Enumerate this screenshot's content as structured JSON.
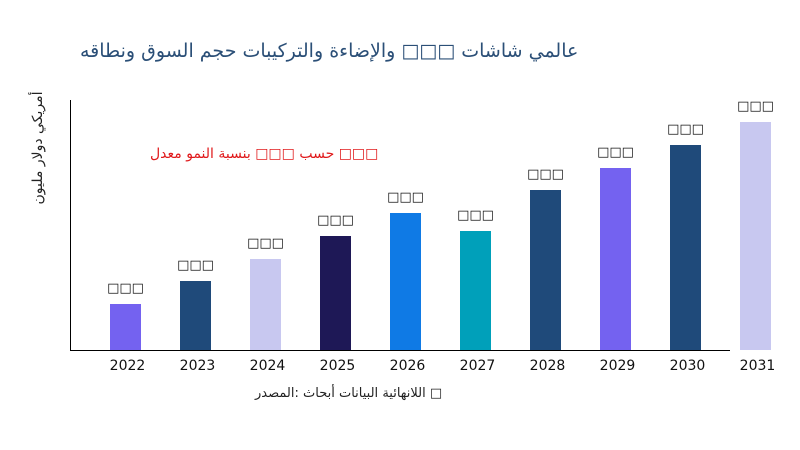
{
  "chart_data": {
    "type": "bar",
    "title": "ونطاقه السوق حجم والتركيبات والإضاءة □□□ شاشات عالمي",
    "ylabel": "مليون دولار أمريكي",
    "xlabel": "",
    "annotation": "معدل النمو بنسبة □□□ حسب □□□",
    "source": "المصدر: أبحاث البيانات اللانهائية □",
    "categories": [
      "2022",
      "2023",
      "2024",
      "2025",
      "2026",
      "2027",
      "2028",
      "2029",
      "2030",
      "2031"
    ],
    "values": [
      46,
      69,
      91,
      114,
      137,
      119,
      160,
      182,
      205,
      228
    ],
    "data_labels": [
      "□□□",
      "□□□",
      "□□□",
      "□□□",
      "□□□",
      "□□□",
      "□□□",
      "□□□",
      "□□□",
      "□□□"
    ],
    "colors": [
      "#7462f0",
      "#1f4a7a",
      "#c8c8f0",
      "#1e1856",
      "#0f7ae5",
      "#00a0ba",
      "#1f4a7a",
      "#7462f0",
      "#1f4a7a",
      "#c8c8f0"
    ],
    "ylim": [
      0,
      250
    ],
    "grid": false,
    "legend": "none"
  }
}
